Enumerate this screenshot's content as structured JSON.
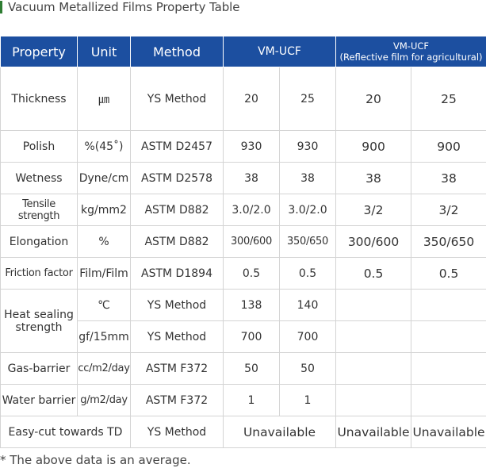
{
  "title": "Vacuum Metallized Films Property Table",
  "headers": {
    "property": "Property",
    "unit": "Unit",
    "method": "Method",
    "group1": "VM-UCF",
    "group2_line1": "VM-UCF",
    "group2_line2": "(Reflective film for agricultural)"
  },
  "rows": [
    {
      "property": "Thickness",
      "unit": "㎛",
      "method": "YS Method",
      "v": [
        "20",
        "25",
        "20",
        "25"
      ]
    },
    {
      "property": "Polish",
      "unit": "%(45˚)",
      "method": "ASTM D2457",
      "v": [
        "930",
        "930",
        "900",
        "900"
      ]
    },
    {
      "property": "Wetness",
      "unit": "Dyne/cm",
      "method": "ASTM D2578",
      "v": [
        "38",
        "38",
        "38",
        "38"
      ]
    },
    {
      "property": "Tensile strength",
      "unit": "kg/mm2",
      "method": "ASTM D882",
      "v": [
        "3.0/2.0",
        "3.0/2.0",
        "3/2",
        "3/2"
      ]
    },
    {
      "property": "Elongation",
      "unit": "%",
      "method": "ASTM D882",
      "v": [
        "300/600",
        "350/650",
        "300/600",
        "350/650"
      ]
    },
    {
      "property": "Friction factor",
      "unit": "Film/Film",
      "method": "ASTM D1894",
      "v": [
        "0.5",
        "0.5",
        "0.5",
        "0.5"
      ]
    },
    {
      "property": "Heat sealing strength",
      "unit": "℃",
      "method": "YS Method",
      "v": [
        "138",
        "140",
        "",
        ""
      ]
    },
    {
      "unit": "gf/15mm",
      "method": "YS Method",
      "v": [
        "700",
        "700",
        "",
        ""
      ]
    },
    {
      "property": "Gas-barrier",
      "unit": "cc/m2/day",
      "method": "ASTM F372",
      "v": [
        "50",
        "50",
        "",
        ""
      ]
    },
    {
      "property": "Water barrier",
      "unit": "g/m2/day",
      "method": "ASTM F372",
      "v": [
        "1",
        "1",
        "",
        ""
      ]
    },
    {
      "property": "Easy-cut towards TD",
      "method": "YS Method",
      "v": [
        "Unavailable",
        "Unavailable",
        "Unavailable"
      ]
    }
  ],
  "note": "* The above data is an average."
}
